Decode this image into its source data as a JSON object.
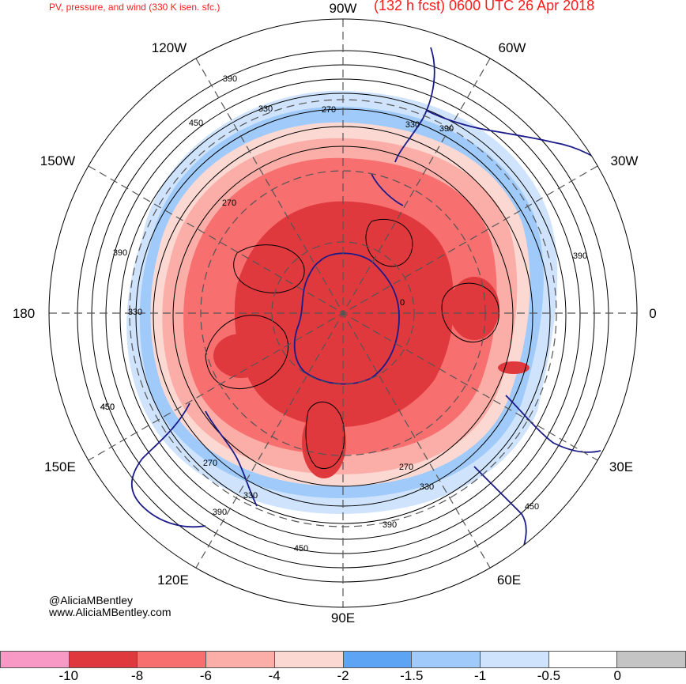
{
  "header": {
    "title_left": "PV, pressure, and wind (330 K isen. sfc.)",
    "title_right": "(132 h fcst) 0600 UTC 26 Apr 2018"
  },
  "longitudes": {
    "top": "90W",
    "top_right": "60W",
    "upper_right": "30W",
    "right": "0",
    "lower_right": "30E",
    "bottom_right": "60E",
    "bottom": "90E",
    "bottom_left": "120E",
    "lower_left": "150E",
    "left": "180",
    "upper_left": "150W",
    "top_left": "120W"
  },
  "contour_labels": [
    "390",
    "330",
    "270",
    "450",
    "330",
    "390",
    "270",
    "390",
    "330",
    "390",
    "450",
    "270",
    "330",
    "390",
    "450",
    "270",
    "330",
    "390",
    "450",
    "450",
    "0"
  ],
  "credits": {
    "handle": "@AliciaMBentley",
    "site": "www.AliciaMBentley.com"
  },
  "colorbar": {
    "colors": [
      "#f799c4",
      "#e0393d",
      "#f76f6f",
      "#fbaea8",
      "#fcd8d2",
      "#5ea4f5",
      "#9fcafa",
      "#cfe4fc",
      "#ffffff",
      "#c4c4c4"
    ],
    "tick_labels": [
      "-10",
      "-8",
      "-6",
      "-4",
      "-2",
      "-1.5",
      "-1",
      "-0.5",
      "0"
    ]
  }
}
